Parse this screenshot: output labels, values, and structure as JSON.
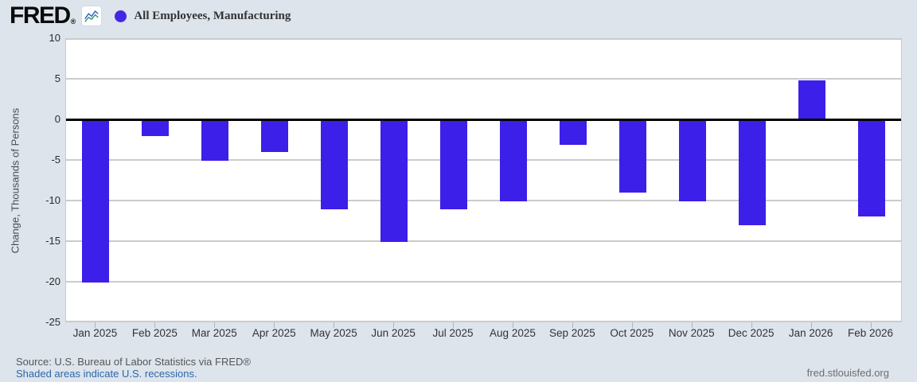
{
  "header": {
    "logo_text": "FRED",
    "logo_mark": "®",
    "legend": {
      "label": "All Employees, Manufacturing",
      "marker_color": "#4527e2"
    }
  },
  "chart_data": {
    "type": "bar",
    "title": "All Employees, Manufacturing",
    "xlabel": "",
    "ylabel": "Change, Thousands of Persons",
    "ylim": [
      -25,
      10
    ],
    "yticks": [
      10,
      5,
      0,
      -5,
      -10,
      -15,
      -20,
      -25
    ],
    "grid": true,
    "legend_position": "top-left",
    "bar_color": "#3c1fe8",
    "categories": [
      "Jan 2025",
      "Feb 2025",
      "Mar 2025",
      "Apr 2025",
      "May 2025",
      "Jun 2025",
      "Jul 2025",
      "Aug 2025",
      "Sep 2025",
      "Oct 2025",
      "Nov 2025",
      "Dec 2025",
      "Jan 2026",
      "Feb 2026"
    ],
    "values": [
      -20.1,
      -2.1,
      -5.1,
      -4.0,
      -11.1,
      -15.1,
      -11.1,
      -10.1,
      -3.1,
      -9.0,
      -10.1,
      -13.0,
      4.8,
      -12.0
    ]
  },
  "footer": {
    "source": "Source: U.S. Bureau of Labor Statistics via FRED®",
    "recession_note": "Shaded areas indicate U.S. recessions.",
    "site_link": "fred.stlouisfed.org"
  }
}
